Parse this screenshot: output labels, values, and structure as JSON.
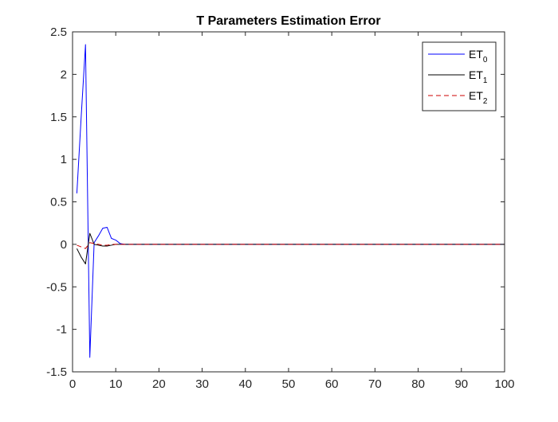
{
  "chart_data": {
    "type": "line",
    "title": "T Parameters Estimation Error",
    "xlabel": "",
    "ylabel": "",
    "xlim": [
      0,
      100
    ],
    "ylim": [
      -1.5,
      2.5
    ],
    "grid": false,
    "legend_position": "top-right",
    "x_ticks": [
      {
        "value": 0,
        "label": "0"
      },
      {
        "value": 10,
        "label": "10"
      },
      {
        "value": 20,
        "label": "20"
      },
      {
        "value": 30,
        "label": "30"
      },
      {
        "value": 40,
        "label": "40"
      },
      {
        "value": 50,
        "label": "50"
      },
      {
        "value": 60,
        "label": "60"
      },
      {
        "value": 70,
        "label": "70"
      },
      {
        "value": 80,
        "label": "80"
      },
      {
        "value": 90,
        "label": "90"
      },
      {
        "value": 100,
        "label": "100"
      }
    ],
    "y_ticks": [
      {
        "value": -1.5,
        "label": "-1.5"
      },
      {
        "value": -1,
        "label": "-1"
      },
      {
        "value": -0.5,
        "label": "-0.5"
      },
      {
        "value": 0,
        "label": "0"
      },
      {
        "value": 0.5,
        "label": "0.5"
      },
      {
        "value": 1,
        "label": "1"
      },
      {
        "value": 1.5,
        "label": "1.5"
      },
      {
        "value": 2,
        "label": "2"
      },
      {
        "value": 2.5,
        "label": "2.5"
      }
    ],
    "series": [
      {
        "name": "ET",
        "subscript": "0",
        "color": "#0000ff",
        "dash": "solid",
        "x": [
          1,
          2,
          3,
          4,
          5,
          6,
          7,
          8,
          9,
          10,
          11,
          12,
          13,
          14,
          15,
          20,
          30,
          40,
          50,
          60,
          70,
          80,
          90,
          100
        ],
        "values": [
          0.6,
          1.5,
          2.35,
          -1.33,
          0.02,
          0.1,
          0.19,
          0.2,
          0.07,
          0.05,
          0.01,
          0.0,
          0.0,
          0.0,
          0.0,
          0.0,
          0.0,
          0.0,
          0.0,
          0.0,
          0.0,
          0.0,
          0.0,
          0.0
        ]
      },
      {
        "name": "ET",
        "subscript": "1",
        "color": "#000000",
        "dash": "solid",
        "x": [
          1,
          2,
          3,
          4,
          5,
          6,
          7,
          8,
          9,
          10,
          11,
          12,
          13,
          14,
          15,
          20,
          30,
          40,
          50,
          60,
          70,
          80,
          90,
          100
        ],
        "values": [
          -0.05,
          -0.15,
          -0.23,
          0.13,
          0.0,
          -0.01,
          -0.02,
          -0.02,
          -0.01,
          0.0,
          0.0,
          0.0,
          0.0,
          0.0,
          0.0,
          0.0,
          0.0,
          0.0,
          0.0,
          0.0,
          0.0,
          0.0,
          0.0,
          0.0
        ]
      },
      {
        "name": "ET",
        "subscript": "2",
        "color": "#cc0000",
        "dash": "dashed",
        "x": [
          1,
          2,
          3,
          4,
          5,
          6,
          7,
          8,
          9,
          10,
          11,
          12,
          13,
          14,
          15,
          20,
          30,
          40,
          50,
          60,
          70,
          80,
          90,
          100
        ],
        "values": [
          -0.01,
          -0.03,
          -0.05,
          0.02,
          0.01,
          0.0,
          -0.01,
          -0.01,
          0.0,
          0.0,
          0.0,
          0.0,
          0.0,
          0.0,
          0.0,
          0.0,
          0.0,
          0.0,
          0.0,
          0.0,
          0.0,
          0.0,
          0.0,
          0.0
        ]
      }
    ]
  }
}
